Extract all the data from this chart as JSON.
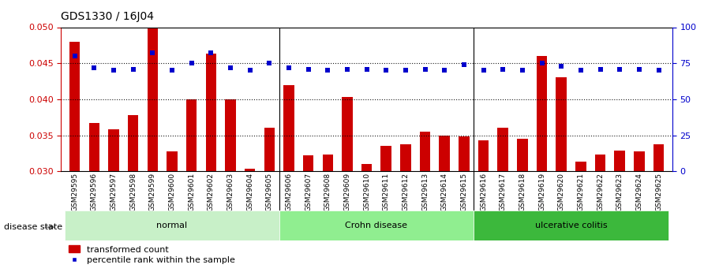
{
  "title": "GDS1330 / 16J04",
  "categories": [
    "GSM29595",
    "GSM29596",
    "GSM29597",
    "GSM29598",
    "GSM29599",
    "GSM29600",
    "GSM29601",
    "GSM29602",
    "GSM29603",
    "GSM29604",
    "GSM29605",
    "GSM29606",
    "GSM29607",
    "GSM29608",
    "GSM29609",
    "GSM29610",
    "GSM29611",
    "GSM29612",
    "GSM29613",
    "GSM29614",
    "GSM29615",
    "GSM29616",
    "GSM29617",
    "GSM29618",
    "GSM29619",
    "GSM29620",
    "GSM29621",
    "GSM29622",
    "GSM29623",
    "GSM29624",
    "GSM29625"
  ],
  "bar_values": [
    0.048,
    0.0367,
    0.0358,
    0.0378,
    0.05,
    0.0328,
    0.04,
    0.0463,
    0.04,
    0.0304,
    0.036,
    0.042,
    0.0322,
    0.0323,
    0.0403,
    0.031,
    0.0335,
    0.0338,
    0.0355,
    0.035,
    0.0348,
    0.0343,
    0.036,
    0.0345,
    0.046,
    0.043,
    0.0314,
    0.0323,
    0.0329,
    0.0328,
    0.0338
  ],
  "dot_percentiles": [
    80,
    72,
    70,
    71,
    82,
    70,
    75,
    82,
    72,
    70,
    75,
    72,
    71,
    70,
    71,
    71,
    70,
    70,
    71,
    70,
    74,
    70,
    71,
    70,
    75,
    73,
    70,
    71,
    71,
    71,
    70
  ],
  "groups": [
    {
      "label": "normal",
      "start": 0,
      "end": 10,
      "color": "#c8f0c8"
    },
    {
      "label": "Crohn disease",
      "start": 11,
      "end": 20,
      "color": "#90ee90"
    },
    {
      "label": "ulcerative colitis",
      "start": 21,
      "end": 30,
      "color": "#3cb83c"
    }
  ],
  "bar_color": "#cc0000",
  "dot_color": "#0000cc",
  "ylim_left": [
    0.03,
    0.05
  ],
  "ylim_right": [
    0,
    100
  ],
  "yticks_left": [
    0.03,
    0.035,
    0.04,
    0.045,
    0.05
  ],
  "yticks_right": [
    0,
    25,
    50,
    75,
    100
  ],
  "grid_values": [
    0.035,
    0.04,
    0.045
  ],
  "disease_state_label": "disease state",
  "legend_bar_label": "transformed count",
  "legend_dot_label": "percentile rank within the sample",
  "background_color": "#ffffff",
  "tick_color_left": "#cc0000",
  "tick_color_right": "#0000cc",
  "xtick_bg_color": "#c8c8c8"
}
